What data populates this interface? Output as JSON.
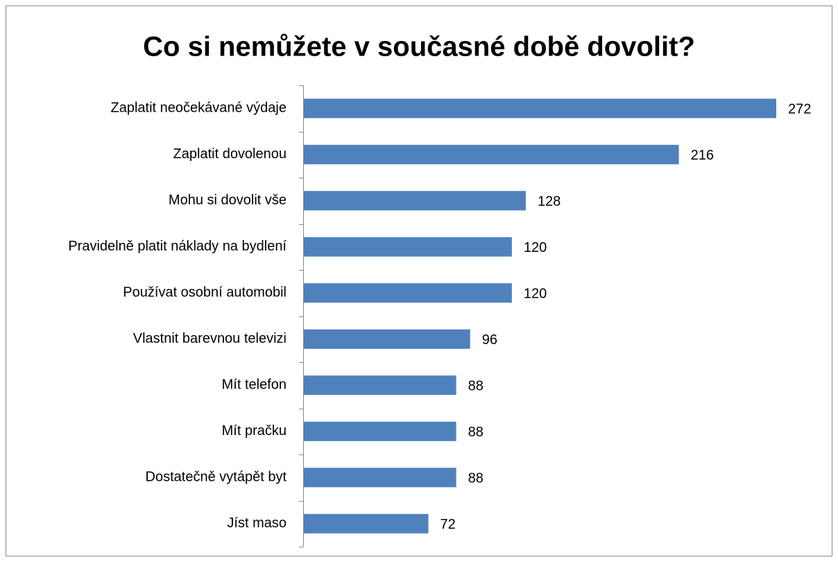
{
  "chart_data": {
    "type": "bar",
    "orientation": "horizontal",
    "title": "Co si nemůžete v současné době dovolit?",
    "categories": [
      "Zaplatit neočekávané výdaje",
      "Zaplatit dovolenou",
      "Mohu si dovolit vše",
      "Pravidelně platit náklady na bydlení",
      "Používat osobní automobil",
      "Vlastnit barevnou televizi",
      "Mít telefon",
      "Mít pračku",
      "Dostatečně vytápět byt",
      "Jíst maso"
    ],
    "values": [
      272,
      216,
      128,
      120,
      120,
      96,
      88,
      88,
      88,
      72
    ],
    "color": "#4f81bd"
  }
}
